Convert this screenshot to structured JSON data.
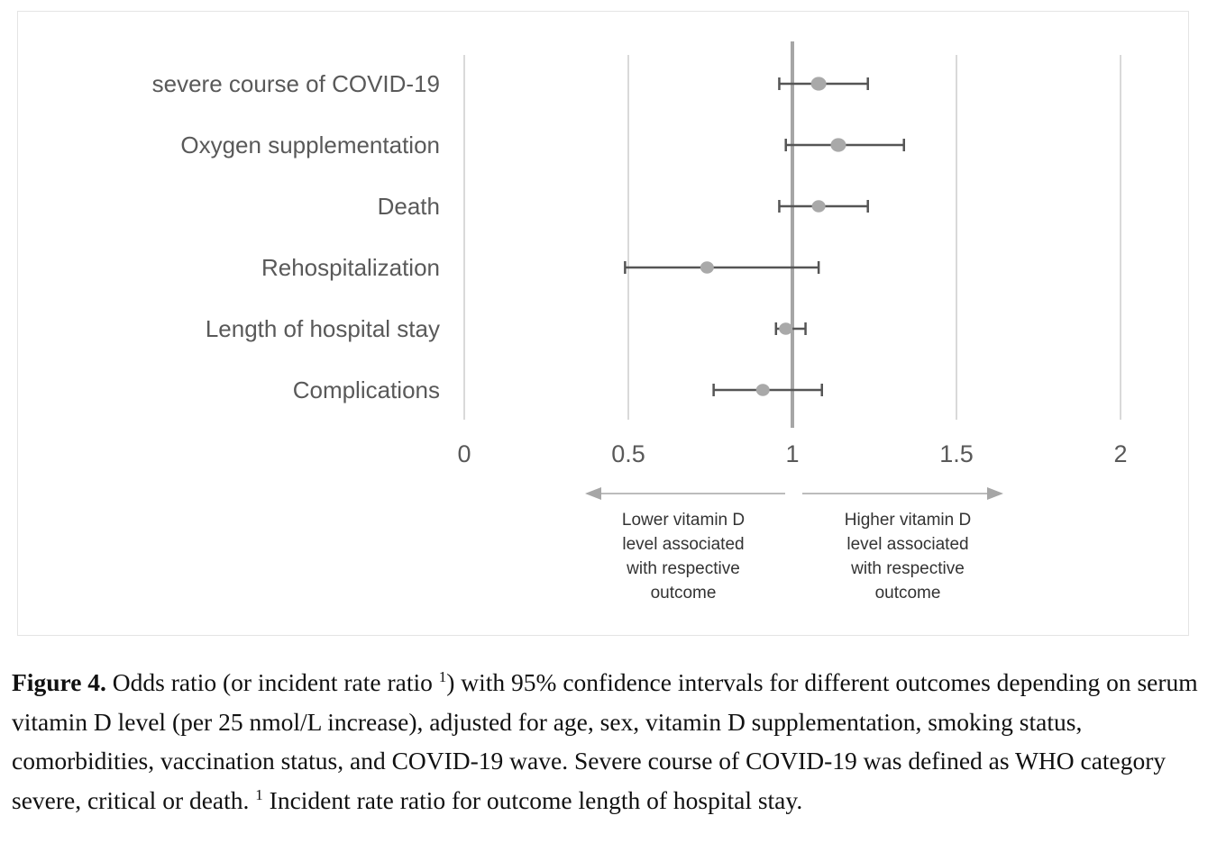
{
  "chart_data": {
    "type": "forest",
    "categories": [
      "severe course of COVID-19",
      "Oxygen supplementation",
      "Death",
      "Rehospitalization",
      "Length of hospital stay",
      "Complications"
    ],
    "estimates": [
      1.08,
      1.14,
      1.08,
      0.74,
      0.98,
      0.91
    ],
    "ci_lower": [
      0.96,
      0.98,
      0.96,
      0.49,
      0.95,
      0.76
    ],
    "ci_upper": [
      1.23,
      1.34,
      1.23,
      1.08,
      1.04,
      1.09
    ],
    "xlim": [
      0,
      2
    ],
    "xticks": [
      "0",
      "0.5",
      "1",
      "1.5",
      "2"
    ],
    "xtick_values": [
      0,
      0.5,
      1,
      1.5,
      2
    ],
    "reference_line": 1,
    "grid": true,
    "point_color": "#a9a9a9",
    "whisker_color": "#555555",
    "annotations": {
      "left": [
        "Lower vitamin D",
        "level associated",
        "with respective",
        "outcome"
      ],
      "right": [
        "Higher vitamin D",
        "level associated",
        "with respective",
        "outcome"
      ]
    }
  },
  "caption": {
    "label": "Figure 4.",
    "text1": " Odds ratio (or incident rate ratio ",
    "sup1": "1",
    "text2": ") with 95% confidence intervals for different outcomes depending on serum vitamin D level (per 25 nmol/L increase), adjusted for age, sex, vitamin D supplementation, smoking status, comorbidities, vaccination status, and COVID-19 wave. Severe course of COVID-19 was defined as WHO category severe, critical or death. ",
    "sup2": "1",
    "text3": " Incident rate ratio for outcome length of hospital stay."
  }
}
